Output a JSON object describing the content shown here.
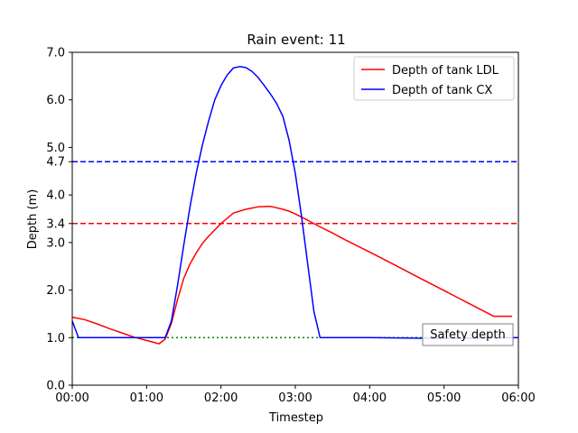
{
  "chart_data": {
    "type": "line",
    "title": "Rain event: 11",
    "xlabel": "Timestep",
    "ylabel": "Depth (m)",
    "xlim": [
      0,
      360
    ],
    "ylim": [
      0,
      7
    ],
    "x_ticks": [
      {
        "value": 0,
        "label": "00:00"
      },
      {
        "value": 60,
        "label": "01:00"
      },
      {
        "value": 120,
        "label": "02:00"
      },
      {
        "value": 180,
        "label": "03:00"
      },
      {
        "value": 240,
        "label": "04:00"
      },
      {
        "value": 300,
        "label": "05:00"
      },
      {
        "value": 360,
        "label": "06:00"
      }
    ],
    "y_ticks": [
      {
        "value": 0,
        "label": "0.0"
      },
      {
        "value": 1,
        "label": "1.0"
      },
      {
        "value": 2,
        "label": "2.0"
      },
      {
        "value": 3,
        "label": "3.0"
      },
      {
        "value": 3.4,
        "label": "3.4"
      },
      {
        "value": 4,
        "label": "4.0"
      },
      {
        "value": 4.7,
        "label": "4.7"
      },
      {
        "value": 5,
        "label": "5.0"
      },
      {
        "value": 6,
        "label": "6.0"
      },
      {
        "value": 7,
        "label": "7.0"
      }
    ],
    "grid": false,
    "legend_position": "top-right",
    "series": [
      {
        "name": "Depth of tank LDL",
        "color": "#ff0000",
        "style": "solid",
        "x": [
          0,
          10,
          20,
          30,
          40,
          50,
          60,
          70,
          75,
          80,
          85,
          90,
          95,
          100,
          105,
          110,
          120,
          130,
          140,
          150,
          160,
          170,
          175,
          180,
          190,
          200,
          210,
          220,
          240,
          260,
          280,
          300,
          320,
          340,
          355
        ],
        "y": [
          1.43,
          1.38,
          1.29,
          1.19,
          1.1,
          1.01,
          0.94,
          0.87,
          0.97,
          1.3,
          1.8,
          2.25,
          2.55,
          2.78,
          2.98,
          3.13,
          3.4,
          3.62,
          3.7,
          3.75,
          3.76,
          3.7,
          3.66,
          3.6,
          3.47,
          3.33,
          3.2,
          3.06,
          2.8,
          2.53,
          2.26,
          1.99,
          1.72,
          1.45,
          1.45
        ]
      },
      {
        "name": "Depth of tank CX",
        "color": "#0000ff",
        "style": "solid",
        "x": [
          0,
          5,
          20,
          40,
          60,
          75,
          80,
          85,
          90,
          95,
          100,
          105,
          110,
          115,
          120,
          125,
          130,
          135,
          140,
          145,
          150,
          155,
          160,
          165,
          170,
          175,
          180,
          185,
          190,
          195,
          200,
          205,
          210,
          240,
          300,
          360
        ],
        "y": [
          1.35,
          1.0,
          1.0,
          1.0,
          1.0,
          1.0,
          1.35,
          2.1,
          2.95,
          3.75,
          4.45,
          5.05,
          5.55,
          6.0,
          6.3,
          6.52,
          6.67,
          6.7,
          6.68,
          6.6,
          6.47,
          6.3,
          6.12,
          5.92,
          5.65,
          5.15,
          4.45,
          3.55,
          2.55,
          1.55,
          1.0,
          1.0,
          1.0,
          1.0,
          0.98,
          1.0
        ]
      }
    ],
    "reference_lines": [
      {
        "y": 3.4,
        "color": "#ff0000",
        "style": "dashed"
      },
      {
        "y": 4.7,
        "color": "#0000ff",
        "style": "dashed"
      },
      {
        "y": 1.0,
        "color": "#008000",
        "style": "dotted"
      }
    ],
    "annotations": [
      {
        "text": "Safety depth",
        "position": "lower-right"
      }
    ]
  }
}
